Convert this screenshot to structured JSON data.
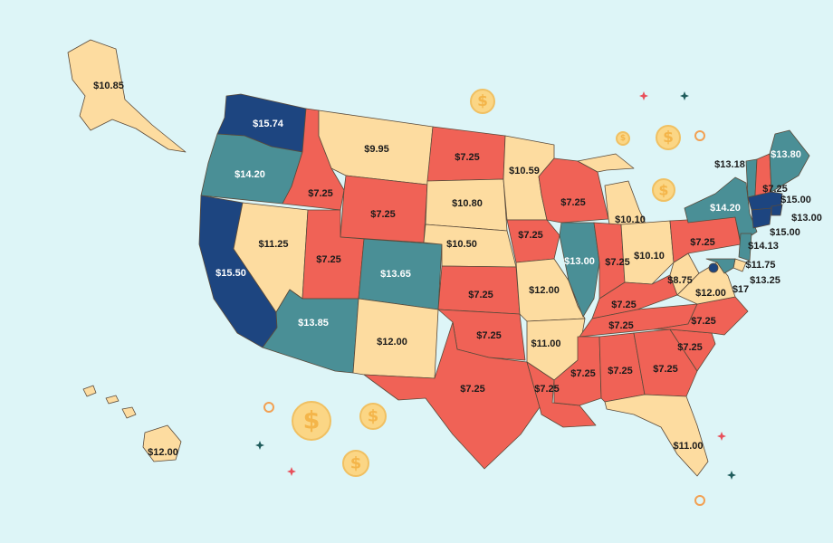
{
  "colors": {
    "background": "#ddf5f7",
    "low": "#f06256",
    "mid": "#fddca0",
    "high": "#4a8f96",
    "highest": "#1d4580",
    "label_dark": "#1b1b1b",
    "label_light": "#ffffff",
    "coin": "#fbd685",
    "coin_sign": "#f4b54a",
    "sparkle_teal": "#1f5c5c",
    "sparkle_red": "#e8505b",
    "ring": "#f2a052"
  },
  "icons": {
    "coin": "dollar-coin-icon",
    "sparkle": "sparkle-icon",
    "ring": "ring-icon"
  },
  "coin_symbol": "$",
  "states": [
    {
      "id": "alaska",
      "wage": "$10.85",
      "tier": "mid"
    },
    {
      "id": "hawaii",
      "wage": "$12.00",
      "tier": "mid"
    },
    {
      "id": "washington",
      "wage": "$15.74",
      "tier": "highest"
    },
    {
      "id": "oregon",
      "wage": "$14.20",
      "tier": "high"
    },
    {
      "id": "california",
      "wage": "$15.50",
      "tier": "highest"
    },
    {
      "id": "idaho",
      "wage": "$7.25",
      "tier": "low"
    },
    {
      "id": "nevada",
      "wage": "$11.25",
      "tier": "mid"
    },
    {
      "id": "montana",
      "wage": "$9.95",
      "tier": "mid"
    },
    {
      "id": "wyoming",
      "wage": "$7.25",
      "tier": "low"
    },
    {
      "id": "utah",
      "wage": "$7.25",
      "tier": "low"
    },
    {
      "id": "arizona",
      "wage": "$13.85",
      "tier": "high"
    },
    {
      "id": "colorado",
      "wage": "$13.65",
      "tier": "high"
    },
    {
      "id": "new-mexico",
      "wage": "$12.00",
      "tier": "mid"
    },
    {
      "id": "north-dakota",
      "wage": "$7.25",
      "tier": "low"
    },
    {
      "id": "south-dakota",
      "wage": "$10.80",
      "tier": "mid"
    },
    {
      "id": "nebraska",
      "wage": "$10.50",
      "tier": "mid"
    },
    {
      "id": "kansas",
      "wage": "$7.25",
      "tier": "low"
    },
    {
      "id": "oklahoma",
      "wage": "$7.25",
      "tier": "low"
    },
    {
      "id": "texas",
      "wage": "$7.25",
      "tier": "low"
    },
    {
      "id": "minnesota",
      "wage": "$10.59",
      "tier": "mid"
    },
    {
      "id": "iowa",
      "wage": "$7.25",
      "tier": "low"
    },
    {
      "id": "missouri",
      "wage": "$12.00",
      "tier": "mid"
    },
    {
      "id": "arkansas",
      "wage": "$11.00",
      "tier": "mid"
    },
    {
      "id": "louisiana",
      "wage": "$7.25",
      "tier": "low"
    },
    {
      "id": "wisconsin",
      "wage": "$7.25",
      "tier": "low"
    },
    {
      "id": "illinois",
      "wage": "$13.00",
      "tier": "high"
    },
    {
      "id": "michigan",
      "wage": "$10.10",
      "tier": "mid"
    },
    {
      "id": "indiana",
      "wage": "$7.25",
      "tier": "low"
    },
    {
      "id": "ohio",
      "wage": "$10.10",
      "tier": "mid"
    },
    {
      "id": "kentucky",
      "wage": "$7.25",
      "tier": "low"
    },
    {
      "id": "tennessee",
      "wage": "$7.25",
      "tier": "low"
    },
    {
      "id": "mississippi",
      "wage": "$7.25",
      "tier": "low"
    },
    {
      "id": "alabama",
      "wage": "$7.25",
      "tier": "low"
    },
    {
      "id": "georgia",
      "wage": "$7.25",
      "tier": "low"
    },
    {
      "id": "florida",
      "wage": "$11.00",
      "tier": "mid"
    },
    {
      "id": "south-carolina",
      "wage": "$7.25",
      "tier": "low"
    },
    {
      "id": "north-carolina",
      "wage": "$7.25",
      "tier": "low"
    },
    {
      "id": "virginia",
      "wage": "$12.00",
      "tier": "mid"
    },
    {
      "id": "west-virginia",
      "wage": "$8.75",
      "tier": "mid"
    },
    {
      "id": "pennsylvania",
      "wage": "$7.25",
      "tier": "low"
    },
    {
      "id": "new-york",
      "wage": "$14.20",
      "tier": "high"
    },
    {
      "id": "vermont",
      "wage": "$13.18",
      "tier": "high"
    },
    {
      "id": "new-hampshire",
      "wage": "$7.25",
      "tier": "low"
    },
    {
      "id": "maine",
      "wage": "$13.80",
      "tier": "high"
    },
    {
      "id": "massachusetts",
      "wage": "$15.00",
      "tier": "highest"
    },
    {
      "id": "rhode-island",
      "wage": "$13.00",
      "tier": "highest"
    },
    {
      "id": "connecticut",
      "wage": "$15.00",
      "tier": "highest"
    },
    {
      "id": "new-jersey",
      "wage": "$14.13",
      "tier": "high"
    },
    {
      "id": "delaware",
      "wage": "$11.75",
      "tier": "mid"
    },
    {
      "id": "maryland",
      "wage": "$13.25",
      "tier": "high"
    },
    {
      "id": "district-of-columbia",
      "wage": "$17",
      "tier": "highest"
    }
  ]
}
